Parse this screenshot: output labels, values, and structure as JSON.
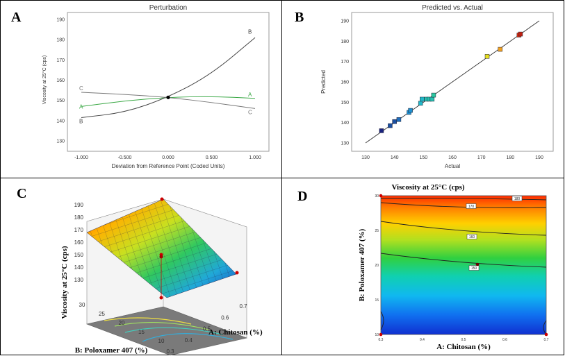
{
  "panels": {
    "a": "A",
    "b": "B",
    "c": "C",
    "d": "D"
  },
  "chart_data": [
    {
      "type": "line",
      "title": "Perturbation",
      "xlabel": "Deviation from Reference Point (Coded Units)",
      "ylabel": "Viscosity at 25°C (cps)",
      "xlim": [
        -1,
        1
      ],
      "ylim": [
        130,
        190
      ],
      "xticks": [
        "-1.000",
        "-0.500",
        "0.000",
        "0.500",
        "1.000"
      ],
      "yticks": [
        "130",
        "140",
        "150",
        "160",
        "170",
        "180",
        "190"
      ],
      "series": [
        {
          "name": "A",
          "color": "#3aa845",
          "x": [
            -1,
            -0.5,
            0,
            0.5,
            1
          ],
          "y": [
            147,
            149.8,
            151.5,
            152,
            151
          ]
        },
        {
          "name": "B",
          "color": "#444444",
          "x": [
            -1,
            -0.5,
            0,
            0.5,
            1
          ],
          "y": [
            141.5,
            144,
            151.5,
            163,
            181
          ]
        },
        {
          "name": "C",
          "color": "#777777",
          "x": [
            -1,
            -0.5,
            0,
            0.5,
            1
          ],
          "y": [
            154,
            153,
            151.5,
            149,
            146
          ]
        }
      ]
    },
    {
      "type": "scatter",
      "title": "Predicted vs. Actual",
      "xlabel": "Actual",
      "ylabel": "Predicted",
      "xlim": [
        130,
        190
      ],
      "ylim": [
        130,
        190
      ],
      "xticks": [
        "130",
        "140",
        "150",
        "160",
        "170",
        "180",
        "190"
      ],
      "yticks": [
        "130",
        "140",
        "150",
        "160",
        "170",
        "180",
        "190"
      ],
      "points": [
        {
          "x": 135.5,
          "y": 136,
          "color": "#1a237e"
        },
        {
          "x": 138.5,
          "y": 138.5,
          "color": "#1a4fa0"
        },
        {
          "x": 140,
          "y": 140.5,
          "color": "#1a4fa0"
        },
        {
          "x": 141.5,
          "y": 141.5,
          "color": "#1e6fc0"
        },
        {
          "x": 145,
          "y": 145,
          "color": "#1e90d0"
        },
        {
          "x": 145.5,
          "y": 146,
          "color": "#1e90d0"
        },
        {
          "x": 149,
          "y": 149.5,
          "color": "#22b8c8"
        },
        {
          "x": 149.5,
          "y": 151.5,
          "color": "#22b8c8"
        },
        {
          "x": 151,
          "y": 151.5,
          "color": "#26c0b0"
        },
        {
          "x": 152,
          "y": 151.5,
          "color": "#26c0b0"
        },
        {
          "x": 153,
          "y": 151.5,
          "color": "#26c0b0"
        },
        {
          "x": 153.5,
          "y": 153.5,
          "color": "#2ac8a0"
        },
        {
          "x": 172,
          "y": 172.5,
          "color": "#e8e020"
        },
        {
          "x": 176.5,
          "y": 176,
          "color": "#f0a020"
        },
        {
          "x": 183,
          "y": 183,
          "color": "#e03010"
        },
        {
          "x": 183.5,
          "y": 183.5,
          "color": "#c02010"
        }
      ],
      "fit_line": {
        "x": [
          130,
          190
        ],
        "y": [
          130,
          190
        ]
      }
    },
    {
      "type": "surface",
      "zlabel": "Viscosity at 25°C (cps)",
      "xlabel": "A: Chitosan (%)",
      "ylabel": "B: Poloxamer 407 (%)",
      "zticks": [
        "130",
        "140",
        "150",
        "160",
        "170",
        "180",
        "190"
      ],
      "xticks": [
        "0.3",
        "0.4",
        "0.5",
        "0.6",
        "0.7"
      ],
      "yticks": [
        "10",
        "15",
        "20",
        "25",
        "30"
      ],
      "xlim": [
        0.3,
        0.7
      ],
      "ylim": [
        10,
        30
      ],
      "zlim": [
        130,
        190
      ]
    },
    {
      "type": "contour",
      "title": "Viscosity at 25°C (cps)",
      "xlabel": "A: Chitosan (%)",
      "ylabel": "B: Poloxamer 407 (%)",
      "xticks": [
        "0.3",
        "0.4",
        "0.5",
        "0.6",
        "0.7"
      ],
      "yticks": [
        "10",
        "15",
        "20",
        "25",
        "30"
      ],
      "xlim": [
        0.3,
        0.7
      ],
      "ylim": [
        10,
        30
      ],
      "contour_labels": [
        "180",
        "170",
        "160",
        "150"
      ],
      "design_points": [
        {
          "x": 0.3,
          "y": 30
        },
        {
          "x": 0.5,
          "y": 20
        },
        {
          "x": 0.7,
          "y": 10
        },
        {
          "x": 0.3,
          "y": 10
        }
      ]
    }
  ]
}
